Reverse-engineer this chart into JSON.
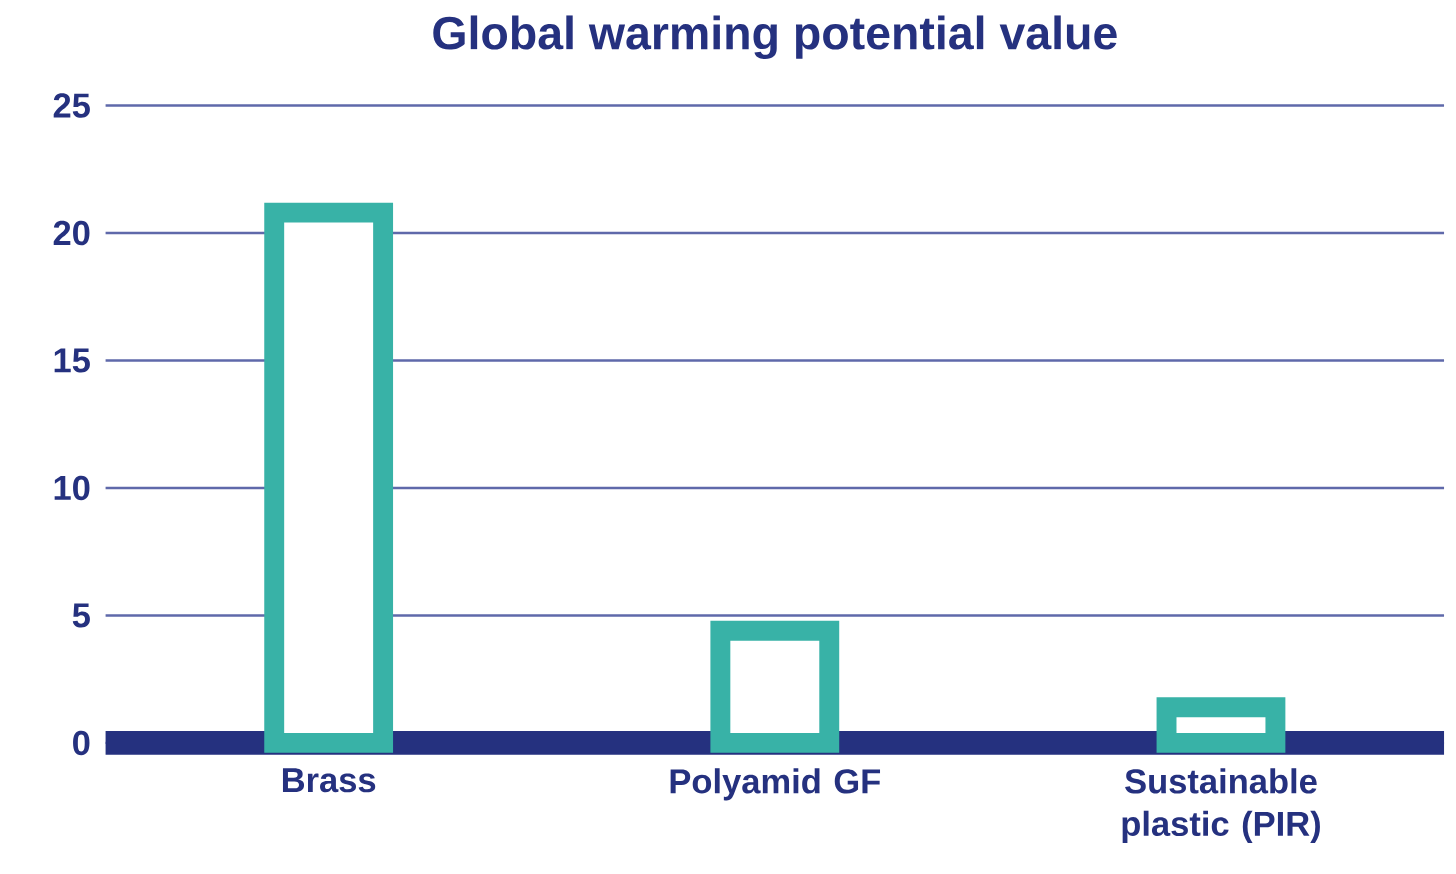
{
  "chart_data": {
    "type": "bar",
    "title": "Global warming potential value",
    "categories": [
      "Brass",
      "Polyamid GF",
      "Sustainable plastic (PIR)"
    ],
    "values": [
      20.8,
      4.4,
      1.4
    ],
    "color": "#38b2a7",
    "ylim": [
      0,
      25
    ],
    "yticks": [
      0,
      5,
      10,
      15,
      20,
      25
    ],
    "grid": "y"
  }
}
